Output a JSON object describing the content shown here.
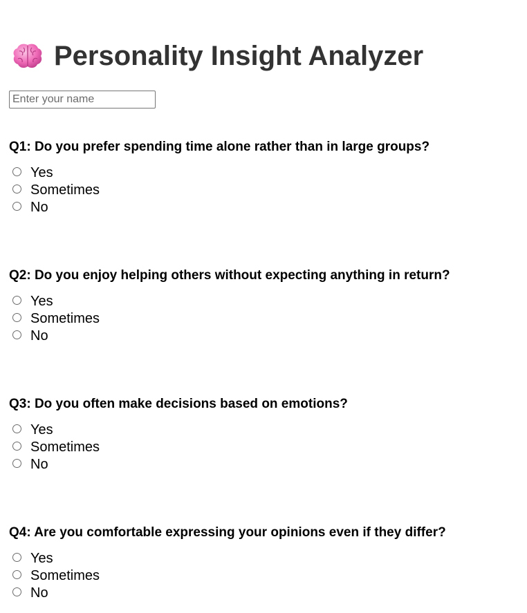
{
  "header": {
    "icon": "brain-icon",
    "title": "Personality Insight Analyzer"
  },
  "name_input": {
    "placeholder": "Enter your name",
    "value": ""
  },
  "questions": [
    {
      "label": "Q1: Do you prefer spending time alone rather than in large groups?",
      "options": [
        "Yes",
        "Sometimes",
        "No"
      ]
    },
    {
      "label": "Q2: Do you enjoy helping others without expecting anything in return?",
      "options": [
        "Yes",
        "Sometimes",
        "No"
      ]
    },
    {
      "label": "Q3: Do you often make decisions based on emotions?",
      "options": [
        "Yes",
        "Sometimes",
        "No"
      ]
    },
    {
      "label": "Q4: Are you comfortable expressing your opinions even if they differ?",
      "options": [
        "Yes",
        "Sometimes",
        "No"
      ]
    }
  ],
  "colors": {
    "title_text": "#333333",
    "brain_pink": "#f06bb8",
    "brain_light": "#f9a8d4"
  }
}
